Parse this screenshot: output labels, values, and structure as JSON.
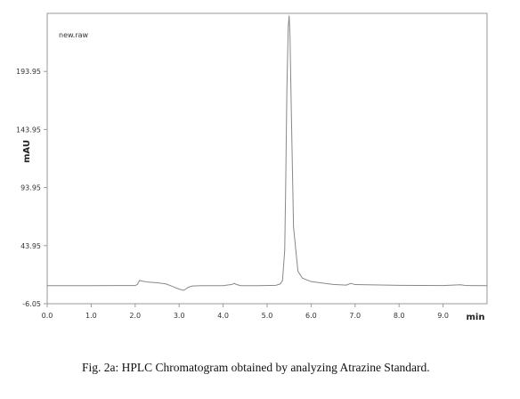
{
  "caption": "Fig. 2a: HPLC Chromatogram obtained by analyzing Atrazine Standard.",
  "chart_data": {
    "type": "line",
    "legend": "new.raw",
    "xlabel": "min",
    "ylabel": "mAU",
    "xlim": [
      0,
      10
    ],
    "ylim": [
      -6.05,
      243.95
    ],
    "x_ticks": [
      0,
      1,
      2,
      3,
      4,
      5,
      6,
      7,
      8,
      9
    ],
    "x_tick_labels": [
      "0.0",
      "1.0",
      "2.0",
      "3.0",
      "4.0",
      "5.0",
      "6.0",
      "7.0",
      "8.0",
      "9.0"
    ],
    "y_ticks": [
      -6.05,
      43.95,
      93.95,
      143.95,
      193.95
    ],
    "y_tick_labels": [
      "-6.05",
      "43.95",
      "93.95",
      "143.95",
      "193.95"
    ],
    "grid": false,
    "line_color": "#888888",
    "series": [
      {
        "values_x": [
          0.0,
          1.0,
          2.0,
          2.05,
          2.1,
          2.15,
          2.3,
          2.5,
          2.7,
          2.8,
          2.9,
          3.0,
          3.1,
          3.15,
          3.2,
          3.3,
          3.5,
          4.0,
          4.2,
          4.25,
          4.3,
          4.4,
          4.8,
          5.2,
          5.3,
          5.35,
          5.4,
          5.42,
          5.45,
          5.48,
          5.5,
          5.52,
          5.55,
          5.6,
          5.7,
          5.8,
          6.0,
          6.5,
          6.8,
          6.9,
          7.0,
          8.0,
          9.0,
          9.4,
          9.5,
          9.6,
          10.0
        ],
        "values_y": [
          9.5,
          9.5,
          9.6,
          10.5,
          14.0,
          13.5,
          12.5,
          12.0,
          11.0,
          9.5,
          8.0,
          6.5,
          5.5,
          6.5,
          8.0,
          9.2,
          9.5,
          9.5,
          10.5,
          11.5,
          10.5,
          9.5,
          9.5,
          9.8,
          11.0,
          14.0,
          40.0,
          90.0,
          180.0,
          232.0,
          242.0,
          225.0,
          160.0,
          60.0,
          22.0,
          16.0,
          13.0,
          10.5,
          10.0,
          11.5,
          10.4,
          9.8,
          9.6,
          10.2,
          9.7,
          9.6,
          9.5
        ]
      }
    ]
  }
}
